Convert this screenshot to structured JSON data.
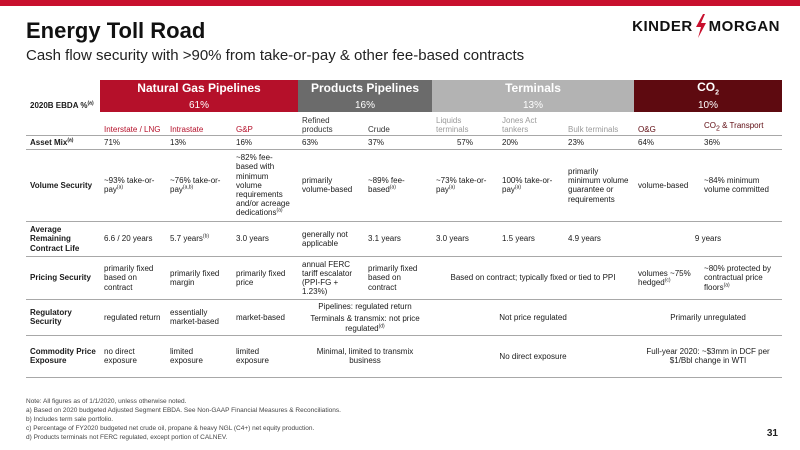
{
  "header": {
    "title": "Energy Toll Road",
    "subtitle": "Cash flow security with >90% from take-or-pay & other fee-based contracts",
    "logo_left": "KINDER",
    "logo_right": "MORGAN"
  },
  "colors": {
    "accent_red": "#c8102e",
    "natural_gas": "#b5102a",
    "products": "#6b6b6b",
    "terminals": "#b3b3b3",
    "co2": "#5e0a10"
  },
  "table": {
    "ebda_label": "2020B EBDA %",
    "ebda_sup": "(a)",
    "segments": {
      "ng": {
        "name": "Natural Gas Pipelines",
        "pct": "61%"
      },
      "pp": {
        "name": "Products Pipelines",
        "pct": "16%"
      },
      "tm": {
        "name": "Terminals",
        "pct": "13%"
      },
      "co": {
        "name_main": "CO",
        "name_sub": "2",
        "pct": "10%"
      }
    },
    "subheads": {
      "ng1": "Interstate / LNG",
      "ng2": "Intrastate",
      "ng3": "G&P",
      "pp1": "Refined products",
      "pp2": "Crude",
      "tm1": "Liquids terminals",
      "tm2": "Jones Act tankers",
      "tm3": "Bulk terminals",
      "co1": "O&G",
      "co2_main": "CO",
      "co2_sub": "2",
      "co2_rest": " & Transport"
    },
    "asset_mix": {
      "label": "Asset Mix",
      "sup": "(a)",
      "values": [
        "71%",
        "13%",
        "16%",
        "63%",
        "37%",
        "57%",
        "20%",
        "23%",
        "64%",
        "36%"
      ]
    },
    "volume_security": {
      "label": "Volume Security",
      "ng1": "~93% take-or-pay",
      "ng1_sup": "(a)",
      "ng2": "~76% take-or-pay",
      "ng2_sup": "(a,b)",
      "ng3": "~82% fee-based with minimum volume requirements and/or acreage dedications",
      "ng3_sup": "(a)",
      "pp1": "primarily volume-based",
      "pp2": "~89% fee-based",
      "pp2_sup": "(a)",
      "tm1": "~73% take-or-pay",
      "tm1_sup": "(a)",
      "tm2": "100% take-or-pay",
      "tm2_sup": "(a)",
      "tm3": "primarily minimum volume guarantee or requirements",
      "co1": "volume-based",
      "co2": "~84% minimum volume committed"
    },
    "contract_life": {
      "label": "Average Remaining Contract Life",
      "ng1": "6.6 / 20 years",
      "ng2": "5.7 years",
      "ng2_sup": "(b)",
      "ng3": "3.0 years",
      "pp1": "generally not applicable",
      "pp2": "3.1 years",
      "tm1": "3.0 years",
      "tm2": "1.5 years",
      "tm3": "4.9 years",
      "co": "9 years"
    },
    "pricing": {
      "label": "Pricing Security",
      "ng1": "primarily fixed based on contract",
      "ng2": "primarily fixed margin",
      "ng3": "primarily fixed price",
      "pp1": "annual FERC tariff escalator (PPI-FG + 1.23%)",
      "pp2": "primarily fixed based on contract",
      "tm": "Based on contract; typically fixed or tied to PPI",
      "co1": "volumes ~75% hedged",
      "co1_sup": "(c)",
      "co2": "~80% protected by contractual price floors",
      "co2_sup": "(a)"
    },
    "regulatory": {
      "label": "Regulatory Security",
      "ng1": "regulated return",
      "ng2": "essentially market-based",
      "ng3": "market-based",
      "pp_line1": "Pipelines:  regulated return",
      "pp_line2": "Terminals & transmix:  not price regulated",
      "pp_sup": "(d)",
      "tm": "Not price regulated",
      "co": "Primarily unregulated"
    },
    "commodity": {
      "label": "Commodity Price Exposure",
      "ng1": "no direct exposure",
      "ng2": "limited exposure",
      "ng3": "limited exposure",
      "pp": "Minimal, limited to transmix business",
      "tm": "No direct exposure",
      "co": "Full-year 2020:  ~$3mm in DCF per $1/Bbl change in WTI"
    }
  },
  "footnotes": [
    "Note:  All figures as of 1/1/2020, unless otherwise noted.",
    "a)  Based on 2020 budgeted Adjusted Segment EBDA. See Non-GAAP Financial Measures & Reconciliations.",
    "b)  Includes term sale portfolio.",
    "c)  Percentage of FY2020 budgeted net crude oil, propane & heavy NGL (C4+) net equity production.",
    "d)  Products terminals not FERC regulated, except portion of CALNEV."
  ],
  "page_number": "31"
}
